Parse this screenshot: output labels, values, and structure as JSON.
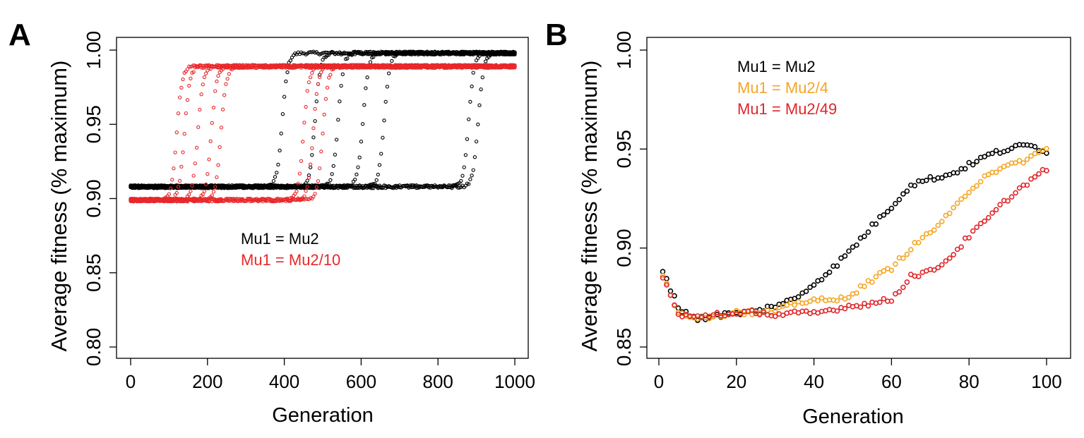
{
  "panels": [
    {
      "letter": "A"
    },
    {
      "letter": "B"
    }
  ],
  "colors": {
    "black": "#000000",
    "red": "#e8282b",
    "orange": "#f5a623",
    "redB": "#e0262b"
  },
  "chart_data": [
    {
      "type": "scatter",
      "panel": "A",
      "xlabel": "Generation",
      "ylabel": "Average fitness (% maximum)",
      "xlim": [
        0,
        1000
      ],
      "ylim": [
        0.8,
        1.0
      ],
      "xticks": [
        "0",
        "200",
        "400",
        "600",
        "800",
        "1000"
      ],
      "yticks": [
        "0.80",
        "0.85",
        "0.90",
        "0.95",
        "1.00"
      ],
      "legend": [
        {
          "label": "Mu1 = Mu2",
          "color": "#000000"
        },
        {
          "label": "Mu1 = Mu2/10",
          "color": "#e8282b"
        }
      ],
      "series": [
        {
          "name": "Mu1 = Mu2",
          "color": "#000000",
          "low": 0.908,
          "high": 0.998,
          "sweep_midpoints": [
            395,
            480,
            540,
            605,
            660,
            880,
            905
          ]
        },
        {
          "name": "Mu1 = Mu2/10",
          "color": "#e8282b",
          "low": 0.899,
          "high": 0.989,
          "sweep_midpoints": [
            120,
            140,
            175,
            210,
            235,
            450,
            475,
            500
          ]
        }
      ]
    },
    {
      "type": "scatter",
      "panel": "B",
      "xlabel": "Generation",
      "ylabel": "Average fitness (% maximum)",
      "xlim": [
        0,
        100
      ],
      "ylim": [
        0.85,
        1.0
      ],
      "xticks": [
        "0",
        "20",
        "40",
        "60",
        "80",
        "100"
      ],
      "yticks": [
        "0.85",
        "0.90",
        "0.95",
        "1.00"
      ],
      "legend": [
        {
          "label": "Mu1 = Mu2",
          "color": "#000000"
        },
        {
          "label": "Mu1 = Mu2/4",
          "color": "#f5a623"
        },
        {
          "label": "Mu1 = Mu2/49",
          "color": "#e0262b"
        }
      ],
      "series": [
        {
          "name": "Mu1 = Mu2",
          "color": "#000000",
          "x": [
            1,
            5,
            10,
            15,
            20,
            25,
            30,
            35,
            40,
            45,
            50,
            55,
            60,
            65,
            70,
            75,
            80,
            85,
            90,
            95,
            100
          ],
          "y": [
            0.889,
            0.87,
            0.864,
            0.866,
            0.867,
            0.868,
            0.871,
            0.874,
            0.882,
            0.89,
            0.9,
            0.911,
            0.921,
            0.932,
            0.935,
            0.937,
            0.942,
            0.947,
            0.95,
            0.952,
            0.949
          ]
        },
        {
          "name": "Mu1 = Mu2/4",
          "color": "#f5a623",
          "x": [
            1,
            5,
            10,
            15,
            20,
            25,
            30,
            35,
            40,
            45,
            50,
            55,
            60,
            65,
            70,
            75,
            80,
            85,
            90,
            95,
            100
          ],
          "y": [
            0.887,
            0.867,
            0.865,
            0.866,
            0.868,
            0.867,
            0.868,
            0.872,
            0.874,
            0.873,
            0.877,
            0.884,
            0.89,
            0.9,
            0.908,
            0.917,
            0.929,
            0.938,
            0.941,
            0.945,
            0.95
          ]
        },
        {
          "name": "Mu1 = Mu2/49",
          "color": "#e0262b",
          "x": [
            1,
            5,
            10,
            15,
            20,
            25,
            30,
            35,
            40,
            45,
            50,
            55,
            60,
            65,
            70,
            75,
            80,
            85,
            90,
            95,
            100
          ],
          "y": [
            0.886,
            0.866,
            0.865,
            0.867,
            0.866,
            0.868,
            0.866,
            0.867,
            0.867,
            0.869,
            0.871,
            0.872,
            0.874,
            0.886,
            0.888,
            0.895,
            0.906,
            0.915,
            0.925,
            0.933,
            0.94
          ]
        }
      ]
    }
  ]
}
